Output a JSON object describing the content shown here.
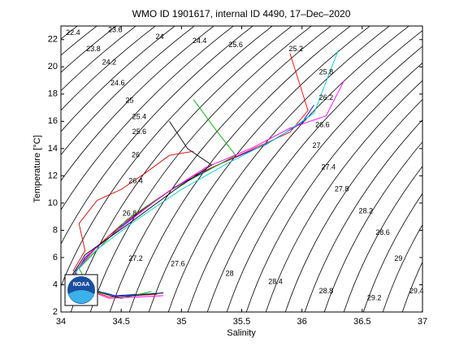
{
  "chart_data": {
    "type": "line",
    "title": "WMO ID 1901617, internal ID 4490, 17–Dec–2020",
    "x_label": "Salinity",
    "y_label": "Temperature [°C]",
    "logo": "NOAA",
    "xlim": [
      34,
      37
    ],
    "xticks": [
      34,
      34.5,
      35,
      35.5,
      36,
      36.5,
      37
    ],
    "ylim": [
      2,
      23
    ],
    "yticks": [
      2,
      4,
      6,
      8,
      10,
      12,
      14,
      16,
      18,
      20,
      22
    ],
    "series": [
      {
        "color": "#0000ff",
        "x": [
          34.85,
          34.45,
          34.2,
          34.1,
          34.2,
          34.4,
          34.65,
          34.95,
          35.3,
          35.7,
          36.0,
          36.1
        ],
        "values": [
          3.4,
          3.2,
          3.8,
          4.6,
          6.0,
          7.6,
          9.3,
          11.2,
          12.8,
          14.3,
          15.9,
          17.2
        ]
      },
      {
        "color": "#ff0000",
        "x": [
          34.8,
          34.4,
          34.15,
          34.12,
          34.3,
          34.5,
          34.8,
          35.1,
          35.5,
          35.9,
          36.05,
          35.9
        ],
        "values": [
          3.3,
          3.1,
          3.9,
          5.0,
          6.8,
          8.4,
          10.3,
          12.0,
          13.6,
          15.2,
          16.8,
          21.0
        ]
      },
      {
        "color": "#00aa00",
        "x": [
          34.75,
          34.5,
          34.25,
          34.15,
          34.35,
          34.55,
          34.9,
          35.2,
          35.45,
          35.3,
          35.1
        ],
        "values": [
          3.5,
          3.0,
          3.6,
          5.2,
          7.0,
          8.8,
          10.9,
          12.3,
          13.5,
          15.2,
          17.6
        ]
      },
      {
        "color": "#ff00ff",
        "x": [
          34.85,
          34.4,
          34.2,
          34.1,
          34.25,
          34.6,
          34.85,
          35.2,
          35.6,
          35.9,
          36.2,
          36.35
        ],
        "values": [
          3.2,
          3.0,
          3.7,
          4.8,
          6.4,
          8.9,
          10.6,
          12.6,
          14.1,
          15.5,
          16.4,
          19.0
        ]
      },
      {
        "color": "#00cccc",
        "x": [
          34.8,
          34.45,
          34.2,
          34.12,
          34.3,
          34.6,
          35.0,
          35.4,
          35.8,
          36.1,
          36.3
        ],
        "values": [
          3.4,
          3.1,
          3.9,
          5.0,
          6.6,
          8.6,
          11.0,
          13.0,
          14.8,
          16.6,
          21.2
        ]
      },
      {
        "color": "#000000",
        "x": [
          34.85,
          34.45,
          34.2,
          34.1,
          34.2,
          34.55,
          34.95,
          35.25,
          35.05,
          34.9
        ],
        "values": [
          3.4,
          3.1,
          3.8,
          4.8,
          6.2,
          8.4,
          11.0,
          12.8,
          14.0,
          16.0
        ]
      },
      {
        "color": "#cc0000",
        "x": [
          34.1,
          34.2,
          34.15,
          34.3,
          34.5,
          34.7,
          34.9,
          35.1
        ],
        "values": [
          5.0,
          6.5,
          8.5,
          10.2,
          11.0,
          12.2,
          13.5,
          13.8
        ]
      }
    ],
    "annotations": [
      {
        "text": "22.4",
        "x": 34.1,
        "y": 22.5
      },
      {
        "text": "23.6",
        "x": 34.45,
        "y": 22.7
      },
      {
        "text": "23.8",
        "x": 34.27,
        "y": 21.3
      },
      {
        "text": "24",
        "x": 34.82,
        "y": 22.2
      },
      {
        "text": "24.2",
        "x": 34.4,
        "y": 20.3
      },
      {
        "text": "24.4",
        "x": 35.15,
        "y": 21.9
      },
      {
        "text": "24.6",
        "x": 34.47,
        "y": 18.8
      },
      {
        "text": "25",
        "x": 34.57,
        "y": 17.5
      },
      {
        "text": "25.4",
        "x": 34.65,
        "y": 16.3
      },
      {
        "text": "25.6",
        "x": 34.65,
        "y": 15.2
      },
      {
        "text": "26",
        "x": 34.62,
        "y": 13.5
      },
      {
        "text": "26.4",
        "x": 34.62,
        "y": 11.6
      },
      {
        "text": "26.8",
        "x": 34.57,
        "y": 9.2
      },
      {
        "text": "27.2",
        "x": 34.62,
        "y": 5.9
      },
      {
        "text": "27.6",
        "x": 34.97,
        "y": 5.5
      },
      {
        "text": "28",
        "x": 35.4,
        "y": 4.8
      },
      {
        "text": "28.4",
        "x": 35.78,
        "y": 4.2
      },
      {
        "text": "28.8",
        "x": 36.2,
        "y": 3.5
      },
      {
        "text": "29.2",
        "x": 36.6,
        "y": 3.0
      },
      {
        "text": "29.4",
        "x": 36.95,
        "y": 3.5
      },
      {
        "text": "25.6",
        "x": 35.45,
        "y": 21.6
      },
      {
        "text": "25.2",
        "x": 35.95,
        "y": 21.3
      },
      {
        "text": "25.8",
        "x": 36.2,
        "y": 19.6
      },
      {
        "text": "26.2",
        "x": 36.2,
        "y": 17.7
      },
      {
        "text": "26.6",
        "x": 36.17,
        "y": 15.7
      },
      {
        "text": "27",
        "x": 36.12,
        "y": 14.2
      },
      {
        "text": "27.4",
        "x": 36.22,
        "y": 12.6
      },
      {
        "text": "27.8",
        "x": 36.33,
        "y": 11.0
      },
      {
        "text": "28.2",
        "x": 36.53,
        "y": 9.4
      },
      {
        "text": "28.6",
        "x": 36.67,
        "y": 7.8
      },
      {
        "text": "29",
        "x": 36.8,
        "y": 5.9
      }
    ]
  }
}
